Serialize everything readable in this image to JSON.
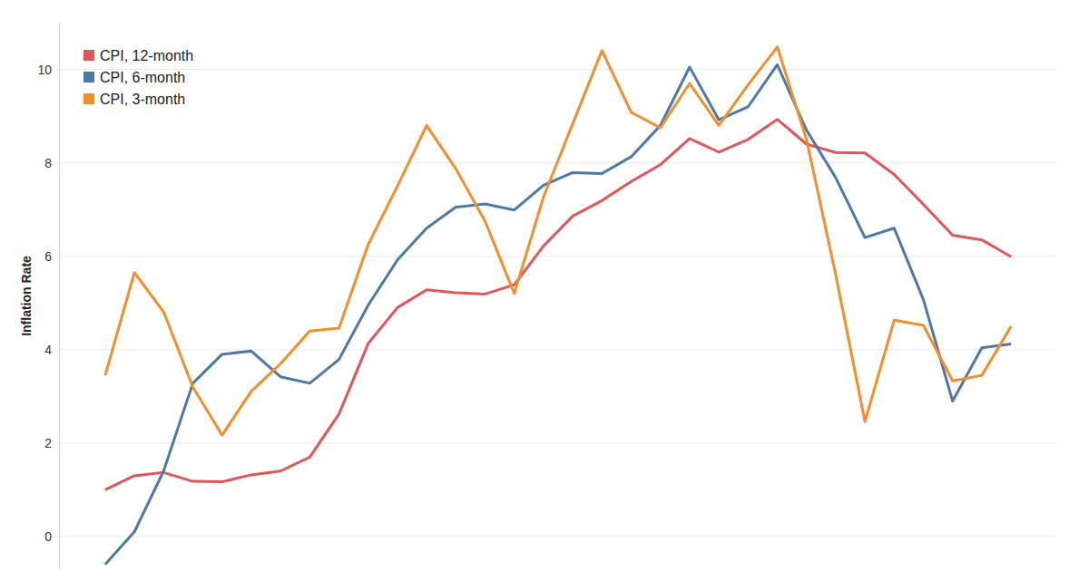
{
  "chart_data": {
    "type": "line",
    "y_label": "Inflation Rate",
    "categories": [
      null,
      null,
      null,
      null,
      null,
      null,
      null,
      null,
      null,
      null,
      null,
      null,
      null,
      null,
      null,
      null,
      null,
      null,
      null,
      null,
      null,
      null,
      null,
      null,
      null,
      null,
      null,
      null,
      null,
      null,
      null,
      null
    ],
    "series": [
      {
        "name": "CPI, 12-month",
        "color": "#e15759",
        "values": [
          1.0,
          1.3,
          1.37,
          1.18,
          1.17,
          1.32,
          1.4,
          1.7,
          2.62,
          4.13,
          4.9,
          5.28,
          5.22,
          5.19,
          5.39,
          6.22,
          6.86,
          7.19,
          7.6,
          7.96,
          8.52,
          8.23,
          8.5,
          8.93,
          8.4,
          8.22,
          8.21,
          7.75,
          7.11,
          6.45,
          6.35,
          5.99
        ]
      },
      {
        "name": "CPI, 6-month",
        "color": "#4e79a7",
        "values": [
          -0.6,
          0.1,
          1.4,
          3.28,
          3.9,
          3.97,
          3.42,
          3.28,
          3.79,
          4.95,
          5.92,
          6.6,
          7.05,
          7.12,
          6.99,
          7.52,
          7.79,
          7.77,
          8.13,
          8.8,
          10.05,
          8.92,
          9.2,
          10.1,
          8.7,
          7.68,
          6.4,
          6.6,
          5.07,
          2.9,
          4.04,
          4.12
        ]
      },
      {
        "name": "CPI, 3-month",
        "color": "#f28e2b",
        "values": [
          3.45,
          5.65,
          4.81,
          3.2,
          2.17,
          3.11,
          3.7,
          4.4,
          4.46,
          6.25,
          7.5,
          8.8,
          7.87,
          6.75,
          5.2,
          7.27,
          8.84,
          10.4,
          9.08,
          8.75,
          9.7,
          8.8,
          9.67,
          10.48,
          8.5,
          5.6,
          2.46,
          4.63,
          4.52,
          3.33,
          3.45,
          4.5
        ]
      }
    ],
    "ylim": [
      -0.7,
      11
    ],
    "yticks": [
      0,
      2,
      4,
      6,
      8,
      10
    ],
    "grid": true,
    "legend": "upper left",
    "tick_labels": "y"
  }
}
